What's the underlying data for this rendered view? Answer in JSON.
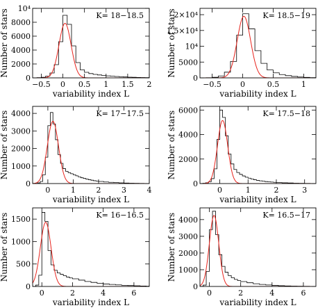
{
  "chart_data": [
    {
      "type": "bar",
      "label": "K= 18−18.5",
      "xlabel": "variability index L",
      "ylabel": "Number of stars",
      "xlim": [
        -0.7,
        2.0
      ],
      "ylim": [
        0,
        10000
      ],
      "xticks": [
        -0.5,
        0,
        0.5,
        1,
        1.5,
        2
      ],
      "xtick_labels": [
        "−0.5",
        "0",
        "0.5",
        "1",
        "1.5",
        "2"
      ],
      "yticks": [
        0,
        2000,
        4000,
        6000,
        8000,
        10000
      ],
      "ytick_labels": [
        "0",
        "2000",
        "4000",
        "6000",
        "8000",
        "10⁴"
      ],
      "bin_edges": [
        -0.7,
        -0.6,
        -0.5,
        -0.4,
        -0.3,
        -0.2,
        -0.1,
        0,
        0.1,
        0.2,
        0.3,
        0.4,
        0.5,
        0.6,
        0.7,
        0.8,
        0.9,
        1.0,
        1.1,
        1.2,
        1.3,
        1.4,
        1.5,
        1.6,
        1.7,
        1.8,
        1.9,
        2.0
      ],
      "hist": [
        0,
        30,
        80,
        250,
        700,
        1900,
        5200,
        9000,
        7700,
        4600,
        2200,
        1150,
        800,
        620,
        500,
        420,
        350,
        290,
        240,
        200,
        160,
        130,
        100,
        80,
        60,
        50,
        40
      ],
      "fit": {
        "name": "Gaussian fit",
        "mu": 0.05,
        "sigma": 0.14,
        "amp": 7850
      }
    },
    {
      "type": "bar",
      "label": "K= 18.5−19",
      "xlabel": "variability index L",
      "ylabel": "Number of stars",
      "xlim": [
        -0.7,
        1.2
      ],
      "ylim": [
        0,
        22000
      ],
      "xticks": [
        -0.5,
        0,
        0.5,
        1
      ],
      "xtick_labels": [
        "−0.5",
        "0",
        "0.5",
        "1"
      ],
      "yticks": [
        0,
        5000,
        10000,
        15000,
        20000
      ],
      "ytick_labels": [
        "0",
        "5000",
        "10⁴",
        "1.5×10⁴",
        "2×10⁴"
      ],
      "bin_edges": [
        -0.7,
        -0.6,
        -0.5,
        -0.4,
        -0.3,
        -0.2,
        -0.1,
        0,
        0.1,
        0.2,
        0.3,
        0.4,
        0.5,
        0.6,
        0.7,
        0.8,
        0.9,
        1.0,
        1.1,
        1.2
      ],
      "hist": [
        0,
        50,
        200,
        600,
        1800,
        5200,
        13500,
        20300,
        15500,
        8600,
        4600,
        2500,
        1600,
        1050,
        700,
        450,
        280,
        160,
        90
      ],
      "fit": {
        "name": "Gaussian fit",
        "mu": 0.02,
        "sigma": 0.11,
        "amp": 19500
      }
    },
    {
      "type": "bar",
      "label": "K= 17−17.5",
      "xlabel": "variability index L",
      "ylabel": "Number of stars",
      "xlim": [
        -0.6,
        4.0
      ],
      "ylim": [
        0,
        4400
      ],
      "xticks": [
        0,
        1,
        2,
        3,
        4
      ],
      "xtick_labels": [
        "0",
        "1",
        "2",
        "3",
        "4"
      ],
      "yticks": [
        0,
        1000,
        2000,
        3000,
        4000
      ],
      "ytick_labels": [
        "0",
        "1000",
        "2000",
        "3000",
        "4000"
      ],
      "bin_edges": [
        -0.6,
        -0.5,
        -0.4,
        -0.3,
        -0.2,
        -0.1,
        0,
        0.1,
        0.2,
        0.3,
        0.4,
        0.5,
        0.6,
        0.7,
        0.8,
        0.9,
        1.0,
        1.1,
        1.2,
        1.3,
        1.4,
        1.5,
        1.6,
        1.7,
        1.8,
        1.9,
        2.0,
        2.2,
        2.4,
        2.6,
        2.8,
        3.0,
        3.2,
        3.4,
        3.6,
        3.8,
        4.0
      ],
      "hist": [
        0,
        10,
        40,
        120,
        500,
        1500,
        3300,
        4050,
        3400,
        2500,
        1650,
        1150,
        850,
        700,
        620,
        560,
        500,
        440,
        380,
        330,
        290,
        250,
        220,
        190,
        160,
        140,
        120,
        90,
        70,
        55,
        40,
        30,
        20,
        15,
        10,
        5
      ],
      "fit": {
        "name": "Gaussian fit",
        "mu": 0.2,
        "sigma": 0.22,
        "amp": 3550
      }
    },
    {
      "type": "bar",
      "label": "K= 17.5−18",
      "xlabel": "variability index L",
      "ylabel": "Number of stars",
      "xlim": [
        -0.7,
        3.4
      ],
      "ylim": [
        0,
        6300
      ],
      "xticks": [
        0,
        1,
        2,
        3
      ],
      "xtick_labels": [
        "0",
        "1",
        "2",
        "3"
      ],
      "yticks": [
        0,
        2000,
        4000,
        6000
      ],
      "ytick_labels": [
        "0",
        "2000",
        "4000",
        "6000"
      ],
      "bin_edges": [
        -0.7,
        -0.6,
        -0.5,
        -0.4,
        -0.3,
        -0.2,
        -0.1,
        0,
        0.1,
        0.2,
        0.3,
        0.4,
        0.5,
        0.6,
        0.7,
        0.8,
        0.9,
        1.0,
        1.1,
        1.2,
        1.3,
        1.4,
        1.5,
        1.6,
        1.7,
        1.8,
        1.9,
        2.0,
        2.2,
        2.4,
        2.6,
        2.8,
        3.0,
        3.2,
        3.4
      ],
      "hist": [
        0,
        20,
        60,
        150,
        400,
        1200,
        3600,
        6000,
        5400,
        3900,
        2400,
        1600,
        1150,
        900,
        750,
        620,
        520,
        440,
        370,
        310,
        260,
        220,
        190,
        160,
        140,
        120,
        100,
        80,
        60,
        45,
        30,
        20,
        10,
        5
      ],
      "fit": {
        "name": "Gaussian fit",
        "mu": 0.1,
        "sigma": 0.18,
        "amp": 5150
      }
    },
    {
      "type": "bar",
      "label": "K= 16−16.5",
      "xlabel": "variability index L",
      "ylabel": "Number of stars",
      "xlim": [
        -0.6,
        7.0
      ],
      "ylim": [
        0,
        1750
      ],
      "xticks": [
        0,
        2,
        4,
        6
      ],
      "xtick_labels": [
        "0",
        "2",
        "4",
        "6"
      ],
      "yticks": [
        0,
        500,
        1000,
        1500
      ],
      "ytick_labels": [
        "0",
        "500",
        "1000",
        "1500"
      ],
      "bin_edges": [
        -0.6,
        -0.4,
        -0.2,
        0,
        0.2,
        0.4,
        0.6,
        0.8,
        1.0,
        1.2,
        1.4,
        1.6,
        1.8,
        2.0,
        2.4,
        2.8,
        3.2,
        3.6,
        4.0,
        4.4,
        4.8,
        5.2,
        5.6,
        6.0,
        6.4,
        6.8,
        7.0
      ],
      "hist": [
        0,
        30,
        250,
        1650,
        1450,
        800,
        480,
        360,
        300,
        270,
        240,
        210,
        190,
        170,
        140,
        110,
        90,
        70,
        55,
        45,
        35,
        25,
        20,
        15,
        10,
        5
      ],
      "fit": {
        "name": "Gaussian fit",
        "mu": 0.25,
        "sigma": 0.35,
        "amp": 1430
      }
    },
    {
      "type": "bar",
      "label": "K= 16.5−17",
      "xlabel": "variability index L",
      "ylabel": "Number of stars",
      "xlim": [
        -0.6,
        6.8
      ],
      "ylim": [
        0,
        4700
      ],
      "xticks": [
        0,
        2,
        4,
        6
      ],
      "xtick_labels": [
        "0",
        "2",
        "4",
        "6"
      ],
      "yticks": [
        0,
        1000,
        2000,
        3000,
        4000
      ],
      "ytick_labels": [
        "0",
        "1000",
        "2000",
        "3000",
        "4000"
      ],
      "bin_edges": [
        -0.6,
        -0.4,
        -0.2,
        0,
        0.2,
        0.4,
        0.6,
        0.8,
        1.0,
        1.2,
        1.4,
        1.6,
        1.8,
        2.0,
        2.4,
        2.8,
        3.2,
        3.6,
        4.0,
        4.4,
        4.8,
        5.2,
        5.6,
        6.0,
        6.4,
        6.8
      ],
      "hist": [
        0,
        80,
        900,
        3400,
        4500,
        3100,
        1900,
        1200,
        850,
        650,
        520,
        420,
        350,
        290,
        220,
        160,
        120,
        90,
        65,
        45,
        30,
        20,
        12,
        8,
        4
      ],
      "fit": {
        "name": "Gaussian fit",
        "mu": 0.3,
        "sigma": 0.3,
        "amp": 4250
      }
    }
  ]
}
